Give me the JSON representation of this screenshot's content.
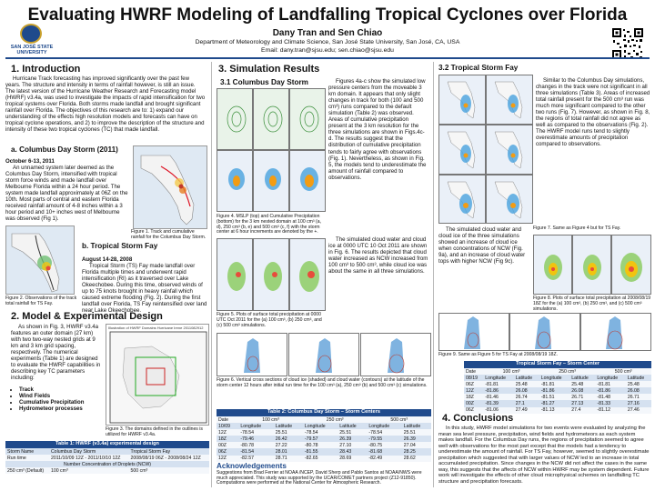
{
  "title": "Evaluating HWRF Modeling of Landfalling Tropical Cyclones over Florida",
  "authors": "Dany Tran and Sen Chiao",
  "affiliation": "Department of Meteorology and Climate Science, San José State University, San José, CA, USA",
  "email": "Email: dany.tran@sjsu.edu; sen.chiao@sjsu.edu",
  "logo": {
    "line1": "SAN JOSÉ STATE",
    "line2": "UNIVERSITY"
  },
  "intro": {
    "heading": "1. Introduction",
    "text": "Hurricane Track forecasting has improved significantly over the past few years. The structure and intensity in terms of rainfall however, is still an issue. The latest version of the Hurricane Weather Research and Forecasting model (HWRF) v3.4a, was used to investigate the impacts of rapid intensification for two tropical systems over Florida. Both storms made landfall and brought significant rainfall over Florida. The objectives of this research are to: 1) expand our understanding of the effects high resolution models and forecasts can have on tropical cyclone operations, and 2) to improve the description of the structure and intensity of these two tropical cyclones (TC) that made landfall.",
    "sub_a": "a. Columbus Day Storm (2011)",
    "a_date": "October 6-13, 2011",
    "a_text": "An unnamed system later deemed as the Columbus Day Storm, intensified with tropical storm force winds and made landfall over Melbourne Florida within a 24 hour period. The system made landfall approximately at 06Z on the 10th. Most parts of central and eastern Florida received rainfall amount of 4-8 inches within a 3 hour period and 10+ inches west of Melbourne was observed (Fig 1).",
    "fig1_cap": "Figure 1. Track and cumulative rainfall for the Columbus Day Storm.",
    "sub_b": "b. Tropical Storm Fay",
    "b_date": "August 14-28, 2008",
    "b_text": "Tropical Storm (TS) Fay made landfall over Florida multiple times and underwent rapid intensification (RI) as it traversed over Lake Okeechobee. During this time, observed winds of up to 75 knots brought in heavy rainfall which caused extreme flooding (Fig. 2). During the first landfall over Florida, TS Fay reintensified over land near Lake Okeechobee.",
    "fig2_cap": "Figure 2. Observations of the track total rainfall for TS Fay."
  },
  "model": {
    "heading": "2. Model & Experimental Design",
    "text": "As shown in Fig. 3, HWRF v3.4a features an outer domain (27 km) with two two-way nested grids at 9 km and 3 km grid spacing, respectively. The numerical experiments (Table 1) are designed to evaluate the HWRF capabilities in describing key TC parameters including:",
    "bullets": [
      "Track",
      "Wind Fields",
      "Cumulative Precipitation",
      "Hydrometeor processes"
    ],
    "fig3_cap": "Figure 3. The domains defined in the outlines is utilized for HWRF v3.4a.",
    "fig3_label": "Illustration of HWRF Domains   Hurricane Irene 2011082912",
    "table1": {
      "title": "Table 1: HWRF (v3.4a) experimental design",
      "r1": [
        "Storm Name",
        "Columbus Day Storm",
        "Tropical Storm Fay"
      ],
      "r2": [
        "Run time",
        "2011/10/09 12Z - 2011/10/10 12Z",
        "2008/08/19 06Z - 2008/08/24 12Z"
      ],
      "r3": "Number Concentration of Droplets (NCW)",
      "r4": [
        "250 cm³ (Default)",
        "100 cm³",
        "500 cm³"
      ]
    }
  },
  "results": {
    "heading": "3. Simulation Results",
    "sub31": "3.1 Columbus Day Storm",
    "text31": "Figures 4a-c show the simulated low pressure centers from the moveable 3 km domain. It appears that only slight changes in track for both (100 and 500 cm³) runs compared to the default simulation (Table 2) was observed. Areas of cumulative precipitation present at the 3 km resolution for the three simulations are shown in Figs.4c-d. The results suggest that the distribution of cumulative precipitation tends to fairly agree with observations (Fig. 1). Nevertheless, as shown in Fig. 5, the models tend to underestimate the amount of rainfall compared to observations.",
    "text31b": "The simulated cloud water and cloud ice at 0000 UTC 10 Oct 2011 are shown in Fig. 6. The results depicted that cloud water increased as NCW increased from 100 cm³ to 500 cm³, while cloud ice was about the same in all three simulations.",
    "fig4_cap": "Figure 4. MSLP (top) and Cumulative Precipitation (bottom) for the 3 km nested domain at 100 cm³ (a, d), 250 cm³ (b, e) and 500 cm³ (c, f) with the storm center at 6 hour increments are denoted by the +.",
    "fig5_cap": "Figure 5. Plots of surface total precipitation at 0000 UTC Oct 2011 for the (a) 100 cm³, (b) 250 cm³, and (c) 500 cm³ simulations.",
    "fig6_cap": "Figure 6. Vertical cross sections of cloud ice (shaded) and cloud water (contours) at the latitude of the storm center 12 hours after initial run time for the 100 cm³ (a), 250 cm³ (b) and 500 cm³ (c) simulations.",
    "table2": {
      "title": "Table 2: Columbus Day Storm – Storm Centers",
      "groups": [
        "Date",
        "100 cm³",
        "250 cm³",
        "500 cm³"
      ],
      "cols": [
        "10/09",
        "Longitude",
        "Latitude",
        "Longitude",
        "Latitude",
        "Longitude",
        "Latitude"
      ],
      "rows": [
        [
          "12Z",
          "-78.54",
          "25.51",
          "-78.54",
          "25.51",
          "-78.54",
          "25.51"
        ],
        [
          "18Z",
          "-79.46",
          "26.42",
          "-79.57",
          "26.39",
          "-79.55",
          "26.39"
        ],
        [
          "00Z",
          "-80.78",
          "27.22",
          "-80.78",
          "27.10",
          "-80.75",
          "27.04"
        ],
        [
          "06Z",
          "-81.54",
          "28.01",
          "-81.55",
          "28.43",
          "-81.68",
          "28.25"
        ],
        [
          "12Z",
          "-82.57",
          "28.71",
          "-82.65",
          "28.69",
          "-82.49",
          "28.62"
        ]
      ]
    },
    "ack_heading": "Acknowledgements",
    "ack_text": "Suggestions from Brad Ferrier at NOAA /NCEP, David Sherp and Pablo Santos at NOAA/NWS were much appreciated. This study was supported by the UCAR/COMET partners project (Z12-91850). Computations were performed at the National Center for Atmospheric Research."
  },
  "fay": {
    "heading": "3.2 Tropical Storm Fay",
    "text": "Similar to the Columbus Day simulations, changes in the track were not significant in all three simulations (Table 3). Areas of increased total rainfall present for the 500 cm³ run was much more significant compared to the other two runs (Fig. 7). However, as shown in Fig. 8, the regions of total rainfall did not agree as well as compared to the observations (Fig. 2). The HWRF model runs tend to slightly overestimate amounts of precipitation compared to observations.",
    "text_b": "The simulated cloud water and cloud ice of the three simulations showed an increase of cloud ice when concentrations of NCW (Fig. 9a), and an increase of cloud water tops with higher NCW (Fig 9c).",
    "fig7_cap": "Figure 7. Same as Figure 4 but for TS Fay.",
    "fig8_cap": "Figure 8. Plots of surface total precipitation at 2008/08/19 18Z for the (a) 100 cm³, (b) 250 cm³, and (c) 500 cm³ simulations.",
    "fig9_cap": "Figure 9. Same as Figure 5 for TS Fay at 2008/08/19 18Z.",
    "table3": {
      "title": "Tropical Storm Fay – Storm Center",
      "groups": [
        "Date",
        "100 cm³",
        "250 cm³",
        "500 cm³"
      ],
      "cols": [
        "08/19",
        "Longitude",
        "Latitude",
        "Longitude",
        "Latitude",
        "Longitude",
        "Latitude"
      ],
      "rows": [
        [
          "06Z",
          "-81.81",
          "25.48",
          "-81.81",
          "25.48",
          "-81.81",
          "25.48"
        ],
        [
          "12Z",
          "-81.86",
          "26.08",
          "-81.86",
          "26.08",
          "-81.86",
          "26.08"
        ],
        [
          "18Z",
          "-81.46",
          "26.74",
          "-81.51",
          "26.71",
          "-81.48",
          "26.71"
        ],
        [
          "00Z",
          "-81.39",
          "27.1",
          "-81.27",
          "27.13",
          "-81.33",
          "27.16"
        ],
        [
          "06Z",
          "-81.06",
          "27.49",
          "-81.13",
          "27.4",
          "-81.12",
          "27.46"
        ]
      ]
    }
  },
  "conclusions": {
    "heading": "4. Conclusions",
    "text": "In this study, HWRF model simulations for two events were evaluated by analyzing the mean sea level pressure, precipitation, wind fields and hydrometeors as each system makes landfall. For the Columbus Day runs, the regions of precipitation seemed to agree well with observations for the most part except that the models had a tendency to underestimate the amount of rainfall. For TS Fay, however, seemed to slightly overestimate precipitation which suggested that with larger values of NCW led to an increase in total accumulated precipitation. Since changes in the NCW did not affect the cases in the same way, this suggests that the affects of NCW within HWRF may be system dependent. Future work will investigate the effects of other cloud microphysical schemes on landfalling TC structure and precipitation forecasts."
  }
}
